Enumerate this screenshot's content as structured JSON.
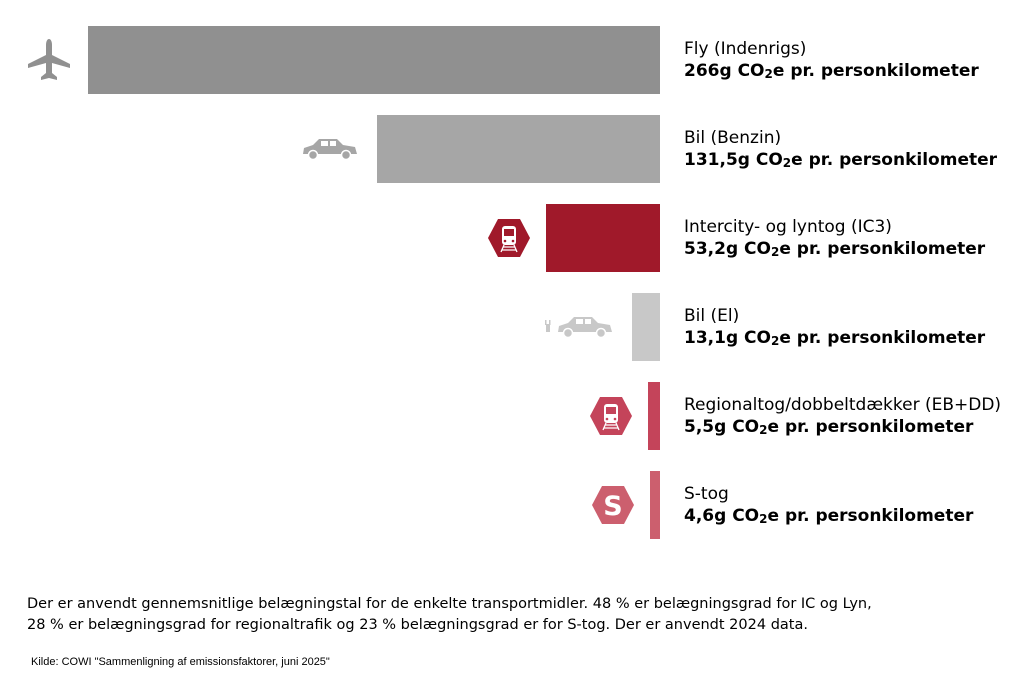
{
  "chart_data": {
    "type": "bar",
    "orientation": "horizontal",
    "title": "",
    "unit": "g CO2e pr. personkilometer",
    "categories": [
      "Fly (Indenrigs)",
      "Bil (Benzin)",
      "Intercity- og lyntog (IC3)",
      "Bil (El)",
      "Regionaltog/dobbeltdækker (EB+DD)",
      "S-tog"
    ],
    "values": [
      266,
      131.5,
      53.2,
      13.1,
      5.5,
      4.6
    ],
    "value_labels": [
      "266g",
      "131,5g",
      "53,2g",
      "13,1g",
      "5,5g",
      "4,6g"
    ],
    "unit_prefix": "CO",
    "unit_sub": "2",
    "unit_suffix": "e pr. personkilometer",
    "colors": [
      "#909090",
      "#a6a6a6",
      "#a0192a",
      "#c8c8c8",
      "#c4445a",
      "#cc5f6e"
    ],
    "icons": [
      "airplane-icon",
      "car-icon",
      "train-icon",
      "electric-car-icon",
      "train-icon",
      "s-train-icon"
    ],
    "xlim": [
      0,
      266
    ],
    "grid": false,
    "legend": "none"
  },
  "footnote": {
    "line1": "Der er anvendt gennemsnitlige belægningstal for de enkelte transportmidler. 48 % er belægningsgrad for IC og Lyn,",
    "line2": "28 % er belægningsgrad for regionaltrafik og 23 % belægningsgrad er for S-tog. Der er anvendt 2024 data."
  },
  "source": "Kilde: COWI \"Sammenligning af emissionsfaktorer, juni 2025\""
}
